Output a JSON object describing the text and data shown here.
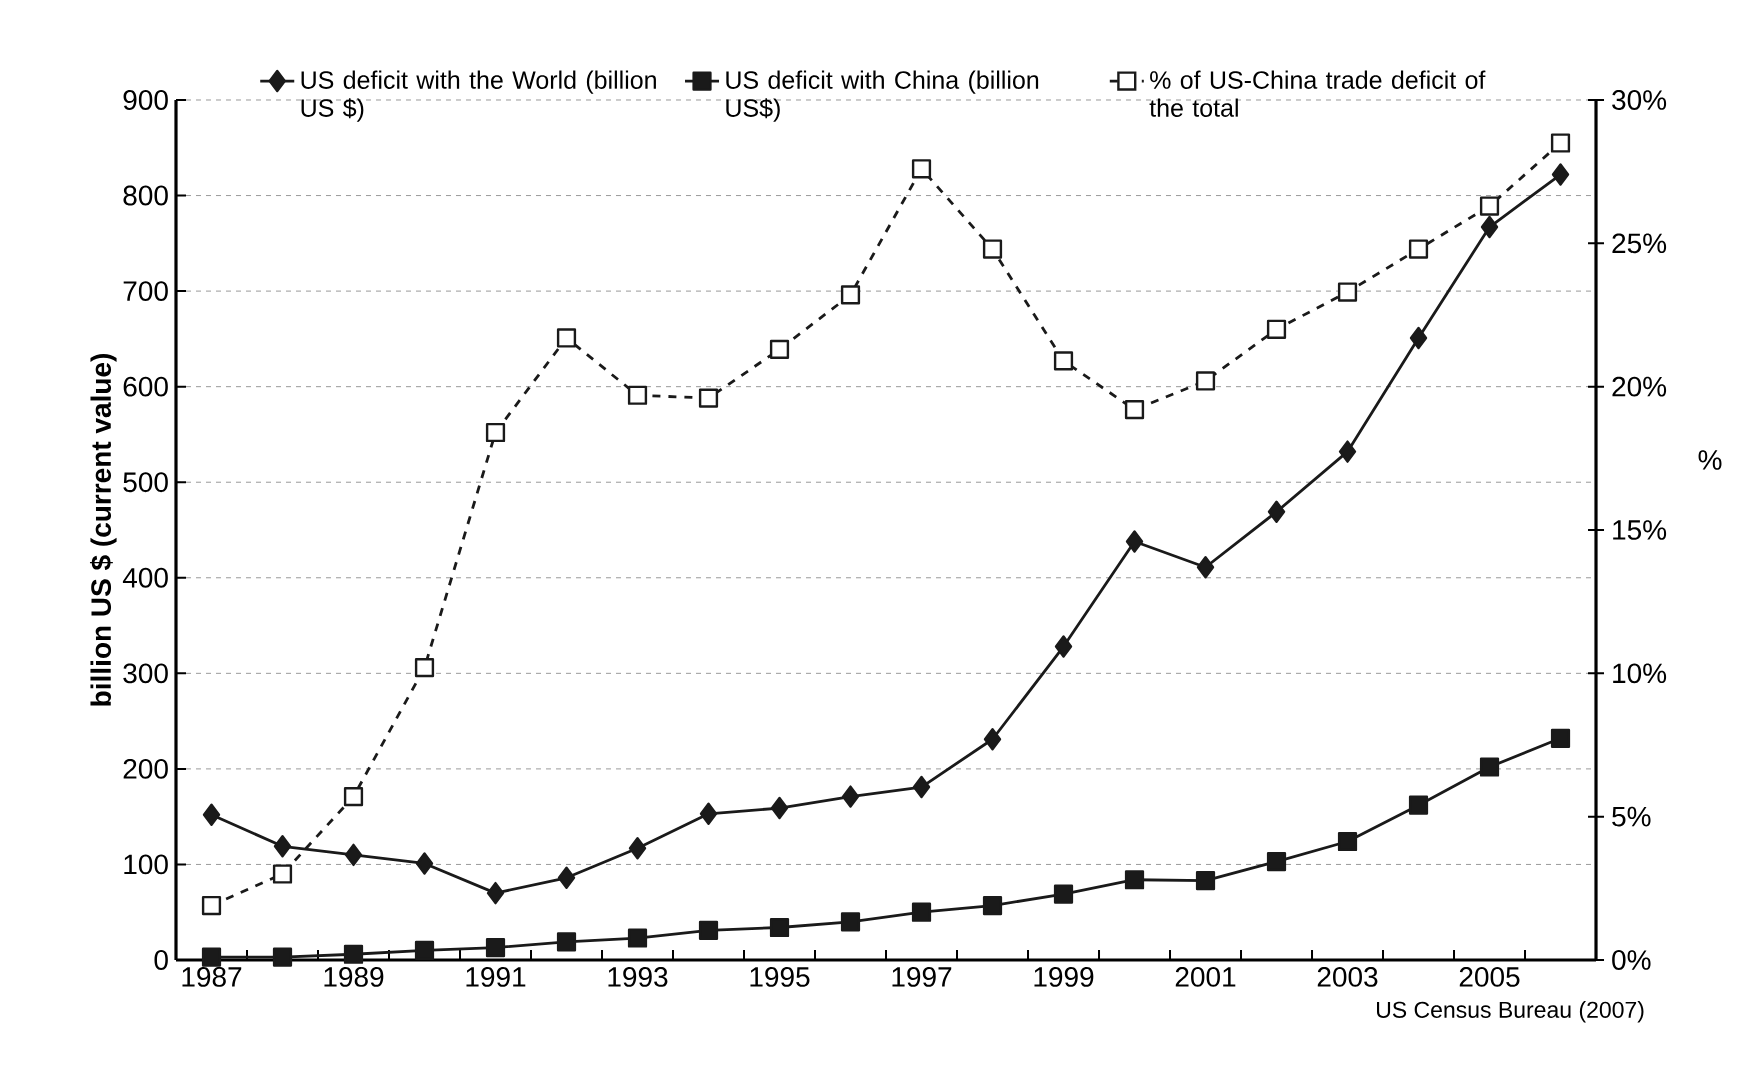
{
  "chart_data": {
    "type": "line",
    "categories": [
      "1987",
      null,
      "1989",
      null,
      "1991",
      null,
      "1993",
      null,
      "1995",
      null,
      "1997",
      null,
      "1999",
      null,
      "2001",
      null,
      "2003",
      null,
      "2005",
      null
    ],
    "series": [
      {
        "name": "US deficit with the World (billion US $)",
        "color": "#1a1a1a",
        "marker": "diamond",
        "line_style": "solid",
        "values": [
          152,
          119,
          110,
          101,
          70,
          86,
          117,
          153,
          159,
          171,
          181,
          231,
          328,
          438,
          411,
          469,
          532,
          651,
          767,
          822
        ]
      },
      {
        "name": "US deficit with China (billion US$)",
        "color": "#1a1a1a",
        "marker": "square",
        "line_style": "solid",
        "values": [
          3,
          3,
          6,
          10,
          13,
          19,
          23,
          31,
          34,
          40,
          50,
          57,
          69,
          84,
          83,
          103,
          124,
          162,
          202,
          232
        ]
      },
      {
        "name": "% of US-China trade deficit of the total",
        "color": "#1a1a1a",
        "marker": "square",
        "line_style": "dashed",
        "axis": "y2",
        "values": [
          1.9,
          3.0,
          5.7,
          10.2,
          18.4,
          21.7,
          19.7,
          19.6,
          21.3,
          23.2,
          27.6,
          24.8,
          20.9,
          19.2,
          20.2,
          22.0,
          23.3,
          24.8,
          26.3,
          28.5
        ]
      }
    ],
    "ylabel": "billion US $ (current value)",
    "y2label": "%",
    "ylim": [
      0,
      900
    ],
    "yticks": [
      0,
      100,
      200,
      300,
      400,
      500,
      600,
      700,
      800,
      900
    ],
    "y2lim": [
      0,
      30
    ],
    "y2ticks": [
      {
        "value": 0,
        "label": "0%"
      },
      {
        "value": 5,
        "label": "5%"
      },
      {
        "value": 10,
        "label": "10%"
      },
      {
        "value": 15,
        "label": "15%"
      },
      {
        "value": 20,
        "label": "20%"
      },
      {
        "value": 25,
        "label": "25%"
      },
      {
        "value": 30,
        "label": "30%"
      }
    ],
    "grid": "y",
    "legend": "top",
    "annotations": [
      "US Census Bureau  (2007)"
    ]
  }
}
